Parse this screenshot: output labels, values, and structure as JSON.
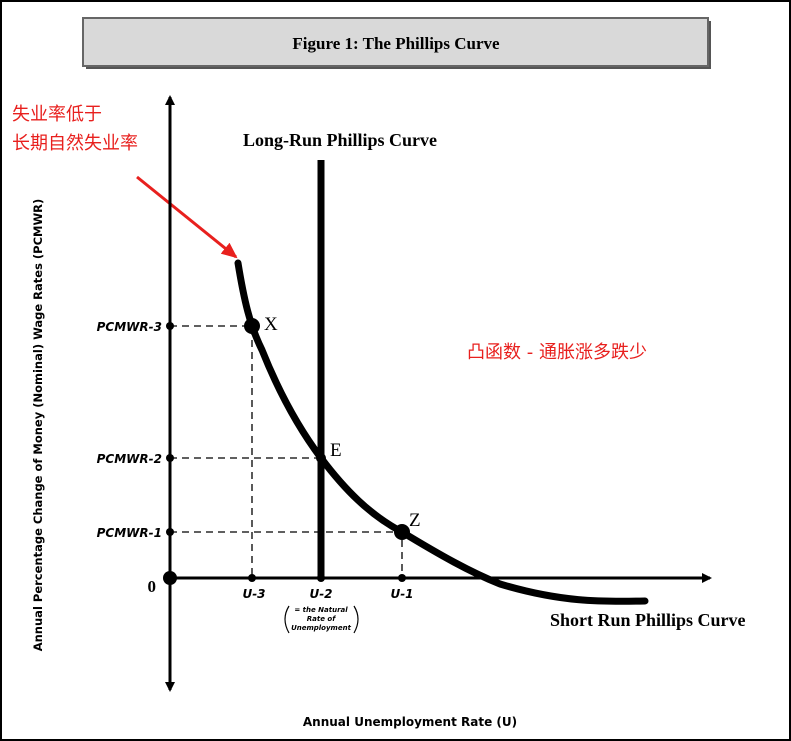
{
  "title": "Figure 1: The Phillips Curve",
  "annotation": [
    "失业率低于",
    "长期自然失业率"
  ],
  "long_run_label": "Long-Run Phillips Curve",
  "convex_note": "凸函数 - 通胀涨多跌少",
  "y_axis": {
    "label": "Annual Percentage Change of Money (Nominal) Wage Rates (PCMWR)",
    "ticks": [
      "PCMWR-3",
      "PCMWR-2",
      "PCMWR-1",
      "0"
    ]
  },
  "x_axis": {
    "label": "Annual Unemployment Rate (U)",
    "ticks": [
      "U-3",
      "U-2",
      "U-1"
    ],
    "note": [
      "= the Natural",
      "Rate of",
      "Unemployment"
    ]
  },
  "points": [
    "X",
    "E",
    "Z"
  ],
  "short_run_label": "Short Run Phillips Curve"
}
